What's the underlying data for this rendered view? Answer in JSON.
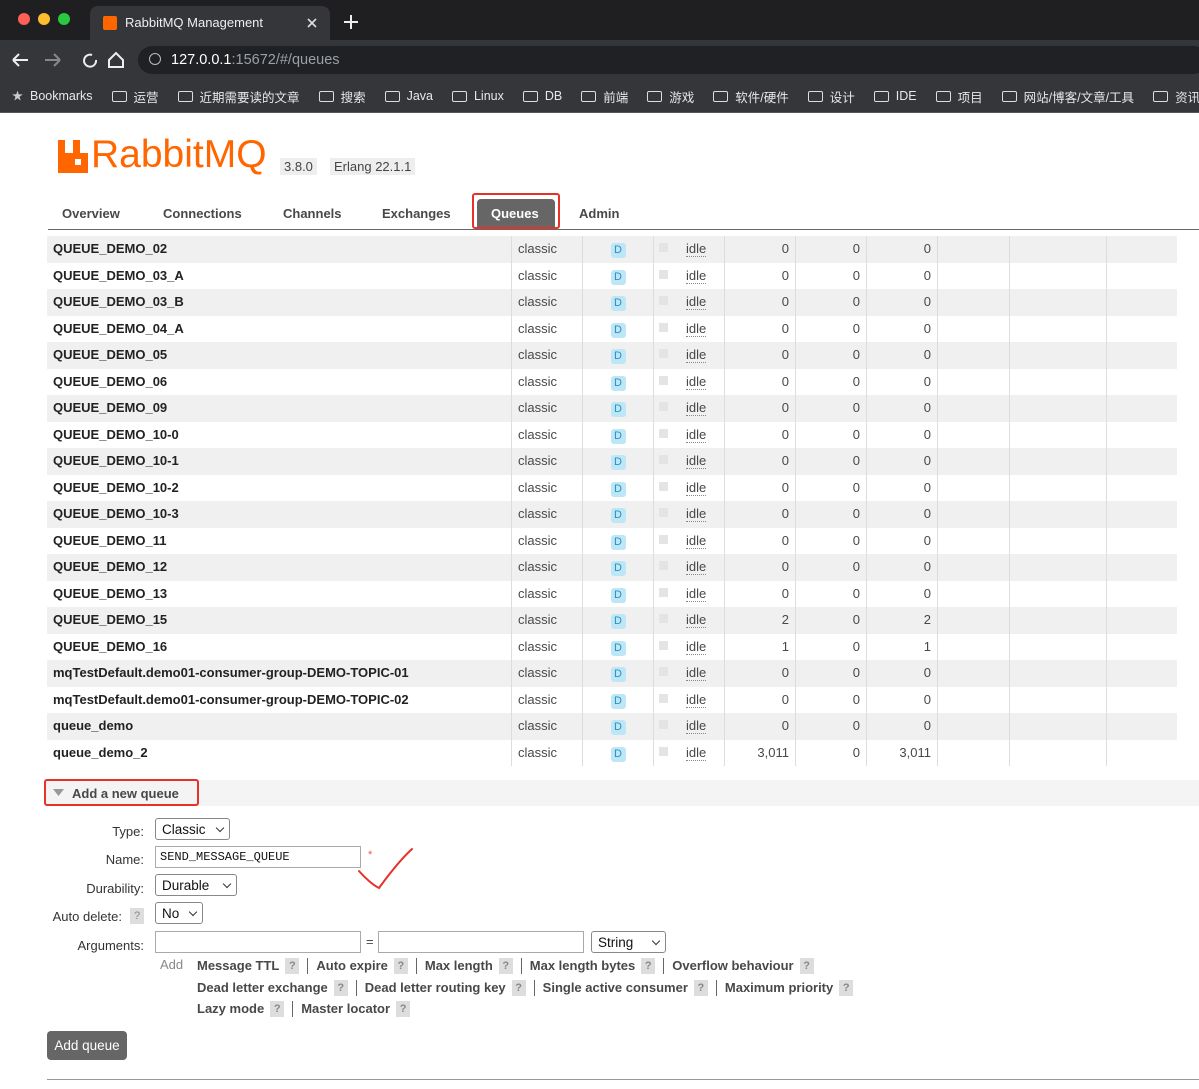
{
  "browser": {
    "tab_title": "RabbitMQ Management",
    "url_host": "127.0.0.1",
    "url_rest": ":15672/#/queues",
    "bookmarks": [
      "Bookmarks",
      "运营",
      "近期需要读的文章",
      "搜索",
      "Java",
      "Linux",
      "DB",
      "前端",
      "游戏",
      "软件/硬件",
      "设计",
      "IDE",
      "项目",
      "网站/博客/文章/工具",
      "资讯未整"
    ]
  },
  "header": {
    "logo": "RabbitMQ",
    "version": "3.8.0",
    "erlang": "Erlang 22.1.1"
  },
  "nav": [
    "Overview",
    "Connections",
    "Channels",
    "Exchanges",
    "Queues",
    "Admin"
  ],
  "table": {
    "rows": [
      {
        "name": "QUEUE_DEMO_02",
        "type": "classic",
        "features": "D",
        "state": "idle",
        "ready": "0",
        "unacked": "0",
        "total": "0"
      },
      {
        "name": "QUEUE_DEMO_03_A",
        "type": "classic",
        "features": "D",
        "state": "idle",
        "ready": "0",
        "unacked": "0",
        "total": "0"
      },
      {
        "name": "QUEUE_DEMO_03_B",
        "type": "classic",
        "features": "D",
        "state": "idle",
        "ready": "0",
        "unacked": "0",
        "total": "0"
      },
      {
        "name": "QUEUE_DEMO_04_A",
        "type": "classic",
        "features": "D",
        "state": "idle",
        "ready": "0",
        "unacked": "0",
        "total": "0"
      },
      {
        "name": "QUEUE_DEMO_05",
        "type": "classic",
        "features": "D",
        "state": "idle",
        "ready": "0",
        "unacked": "0",
        "total": "0"
      },
      {
        "name": "QUEUE_DEMO_06",
        "type": "classic",
        "features": "D",
        "state": "idle",
        "ready": "0",
        "unacked": "0",
        "total": "0"
      },
      {
        "name": "QUEUE_DEMO_09",
        "type": "classic",
        "features": "D",
        "state": "idle",
        "ready": "0",
        "unacked": "0",
        "total": "0"
      },
      {
        "name": "QUEUE_DEMO_10-0",
        "type": "classic",
        "features": "D",
        "state": "idle",
        "ready": "0",
        "unacked": "0",
        "total": "0"
      },
      {
        "name": "QUEUE_DEMO_10-1",
        "type": "classic",
        "features": "D",
        "state": "idle",
        "ready": "0",
        "unacked": "0",
        "total": "0"
      },
      {
        "name": "QUEUE_DEMO_10-2",
        "type": "classic",
        "features": "D",
        "state": "idle",
        "ready": "0",
        "unacked": "0",
        "total": "0"
      },
      {
        "name": "QUEUE_DEMO_10-3",
        "type": "classic",
        "features": "D",
        "state": "idle",
        "ready": "0",
        "unacked": "0",
        "total": "0"
      },
      {
        "name": "QUEUE_DEMO_11",
        "type": "classic",
        "features": "D",
        "state": "idle",
        "ready": "0",
        "unacked": "0",
        "total": "0"
      },
      {
        "name": "QUEUE_DEMO_12",
        "type": "classic",
        "features": "D",
        "state": "idle",
        "ready": "0",
        "unacked": "0",
        "total": "0"
      },
      {
        "name": "QUEUE_DEMO_13",
        "type": "classic",
        "features": "D",
        "state": "idle",
        "ready": "0",
        "unacked": "0",
        "total": "0"
      },
      {
        "name": "QUEUE_DEMO_15",
        "type": "classic",
        "features": "D",
        "state": "idle",
        "ready": "2",
        "unacked": "0",
        "total": "2"
      },
      {
        "name": "QUEUE_DEMO_16",
        "type": "classic",
        "features": "D",
        "state": "idle",
        "ready": "1",
        "unacked": "0",
        "total": "1"
      },
      {
        "name": "mqTestDefault.demo01-consumer-group-DEMO-TOPIC-01",
        "type": "classic",
        "features": "D",
        "state": "idle",
        "ready": "0",
        "unacked": "0",
        "total": "0"
      },
      {
        "name": "mqTestDefault.demo01-consumer-group-DEMO-TOPIC-02",
        "type": "classic",
        "features": "D",
        "state": "idle",
        "ready": "0",
        "unacked": "0",
        "total": "0"
      },
      {
        "name": "queue_demo",
        "type": "classic",
        "features": "D",
        "state": "idle",
        "ready": "0",
        "unacked": "0",
        "total": "0"
      },
      {
        "name": "queue_demo_2",
        "type": "classic",
        "features": "D",
        "state": "idle",
        "ready": "3,011",
        "unacked": "0",
        "total": "3,011"
      }
    ]
  },
  "form": {
    "title": "Add a new queue",
    "type_label": "Type:",
    "type_value": "Classic",
    "name_label": "Name:",
    "name_value": "SEND_MESSAGE_QUEUE",
    "required": "*",
    "durability_label": "Durability:",
    "durability_value": "Durable",
    "auto_delete_label": "Auto delete:",
    "auto_delete_value": "No",
    "arguments_label": "Arguments:",
    "equals": "=",
    "arg_type": "String",
    "add": "Add",
    "help": "?",
    "argument_links": [
      "Message TTL",
      "Auto expire",
      "Max length",
      "Max length bytes",
      "Overflow behaviour",
      "Dead letter exchange",
      "Dead letter routing key",
      "Single active consumer",
      "Maximum priority",
      "Lazy mode",
      "Master locator"
    ],
    "submit": "Add queue"
  }
}
